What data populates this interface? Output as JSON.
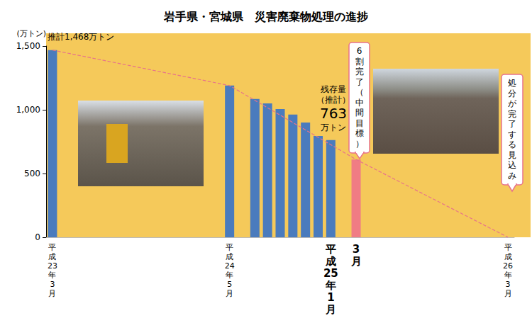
{
  "chart_data": {
    "type": "bar",
    "title": "岩手県・宮城県　災害廃棄物処理の進捗",
    "y_label": "(万トン)",
    "categories": [
      "平成23年3月",
      null,
      null,
      null,
      null,
      null,
      null,
      null,
      null,
      null,
      null,
      null,
      null,
      null,
      "平成24年5月",
      null,
      null,
      null,
      null,
      null,
      null,
      null,
      "平成25年1月",
      null,
      "3月",
      null,
      null,
      null,
      null,
      null,
      null,
      null,
      null,
      null,
      null,
      null,
      "平成26年3月"
    ],
    "series": [
      {
        "type": "bar",
        "color": "#4a7bbd",
        "colors": [
          "#4a7bbd",
          "#4a7bbd",
          "#4a7bbd",
          "#4a7bbd",
          "#4a7bbd",
          "#4a7bbd",
          "#4a7bbd",
          "#4a7bbd",
          "#4a7bbd",
          "#4a7bbd",
          "#4a7bbd",
          "#4a7bbd",
          "#4a7bbd",
          "#4a7bbd",
          "#4a7bbd",
          "#4a7bbd",
          "#4a7bbd",
          "#4a7bbd",
          "#4a7bbd",
          "#4a7bbd",
          "#4a7bbd",
          "#4a7bbd",
          "#4a7bbd",
          "#4a7bbd",
          "#f07c84",
          "#4a7bbd",
          "#4a7bbd",
          "#4a7bbd",
          "#4a7bbd",
          "#4a7bbd",
          "#4a7bbd",
          "#4a7bbd",
          "#4a7bbd",
          "#4a7bbd",
          "#4a7bbd",
          "#4a7bbd",
          "#4a7bbd"
        ],
        "values": [
          1468,
          null,
          null,
          null,
          null,
          null,
          null,
          null,
          null,
          null,
          null,
          null,
          null,
          null,
          1190,
          null,
          1085,
          1050,
          1005,
          962,
          900,
          795,
          763,
          null,
          610,
          null,
          null,
          null,
          null,
          null,
          null,
          null,
          null,
          null,
          null,
          null,
          null
        ]
      },
      {
        "type": "line",
        "color": "#e8738a",
        "line_style": "dashed",
        "values": [
          1468,
          null,
          null,
          null,
          null,
          null,
          null,
          null,
          null,
          null,
          null,
          null,
          null,
          null,
          1190,
          null,
          null,
          null,
          null,
          null,
          null,
          null,
          null,
          null,
          610,
          null,
          null,
          null,
          null,
          null,
          null,
          null,
          null,
          null,
          null,
          null,
          0
        ]
      }
    ],
    "ylim": [
      0,
      1500
    ],
    "yticks": [
      0,
      500,
      {
        "value": 1000,
        "label": "1,000"
      },
      {
        "value": 1500,
        "label": "1,500"
      }
    ],
    "grid": false,
    "annotations": [
      "推計1,468万トン",
      "残存量（推計）763万トン",
      "6割完了（中間目標）",
      "処分が完了する見込み"
    ]
  }
}
